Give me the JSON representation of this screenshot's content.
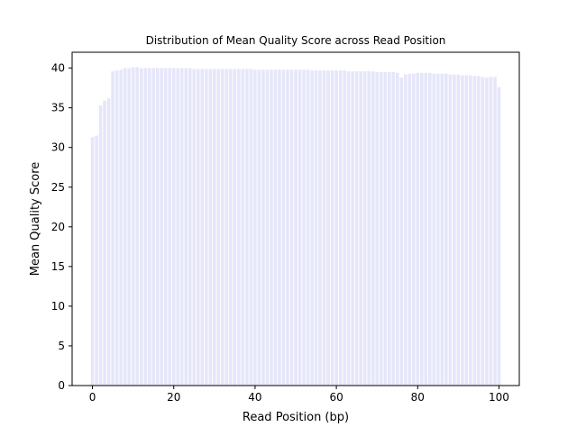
{
  "chart_data": {
    "type": "bar",
    "title": "Distribution of Mean Quality Score across Read Position",
    "xlabel": "Read Position (bp)",
    "ylabel": "Mean Quality Score",
    "xlim": [
      -5,
      105
    ],
    "ylim": [
      0,
      42
    ],
    "xticks": [
      0,
      20,
      40,
      60,
      80,
      100
    ],
    "yticks": [
      0,
      5,
      10,
      15,
      20,
      25,
      30,
      35,
      40
    ],
    "grid": false,
    "bar_color": "#e6e6fa",
    "x": [
      0,
      1,
      2,
      3,
      4,
      5,
      6,
      7,
      8,
      9,
      10,
      11,
      12,
      13,
      14,
      15,
      16,
      17,
      18,
      19,
      20,
      21,
      22,
      23,
      24,
      25,
      26,
      27,
      28,
      29,
      30,
      31,
      32,
      33,
      34,
      35,
      36,
      37,
      38,
      39,
      40,
      41,
      42,
      43,
      44,
      45,
      46,
      47,
      48,
      49,
      50,
      51,
      52,
      53,
      54,
      55,
      56,
      57,
      58,
      59,
      60,
      61,
      62,
      63,
      64,
      65,
      66,
      67,
      68,
      69,
      70,
      71,
      72,
      73,
      74,
      75,
      76,
      77,
      78,
      79,
      80,
      81,
      82,
      83,
      84,
      85,
      86,
      87,
      88,
      89,
      90,
      91,
      92,
      93,
      94,
      95,
      96,
      97,
      98,
      99,
      100
    ],
    "values": [
      31.3,
      31.5,
      35.3,
      35.9,
      36.2,
      39.6,
      39.7,
      39.8,
      40.0,
      40.0,
      40.1,
      40.1,
      40.0,
      40.0,
      40.0,
      40.0,
      40.0,
      40.0,
      40.0,
      40.0,
      40.0,
      40.0,
      40.0,
      40.0,
      40.0,
      39.9,
      39.9,
      39.9,
      39.9,
      39.9,
      39.9,
      39.9,
      39.9,
      39.9,
      39.9,
      39.9,
      39.9,
      39.9,
      39.9,
      39.9,
      39.8,
      39.8,
      39.8,
      39.8,
      39.8,
      39.8,
      39.8,
      39.8,
      39.8,
      39.8,
      39.8,
      39.8,
      39.8,
      39.8,
      39.7,
      39.7,
      39.7,
      39.7,
      39.7,
      39.7,
      39.7,
      39.7,
      39.7,
      39.6,
      39.6,
      39.6,
      39.6,
      39.6,
      39.6,
      39.6,
      39.5,
      39.5,
      39.5,
      39.5,
      39.5,
      39.4,
      38.8,
      39.2,
      39.3,
      39.3,
      39.4,
      39.4,
      39.4,
      39.4,
      39.3,
      39.3,
      39.3,
      39.3,
      39.2,
      39.2,
      39.2,
      39.1,
      39.1,
      39.1,
      39.0,
      39.0,
      38.9,
      38.8,
      38.9,
      38.9,
      37.6
    ]
  }
}
